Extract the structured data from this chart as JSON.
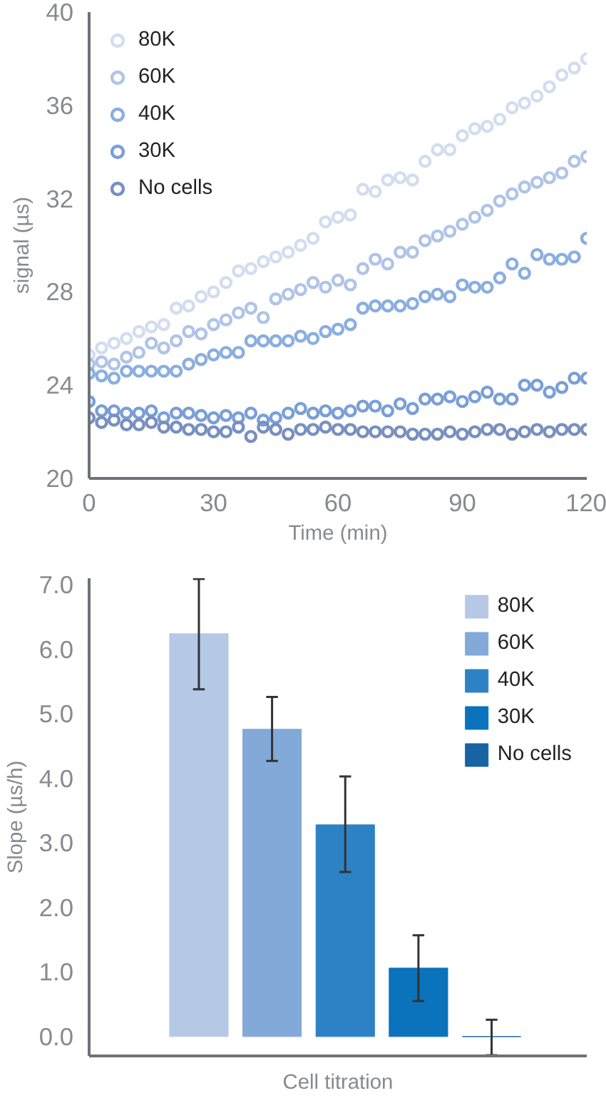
{
  "chart_data": [
    {
      "type": "scatter",
      "xlabel": "Time (min)",
      "ylabel": "signal (µs)",
      "xlim": [
        0,
        120
      ],
      "ylim": [
        20,
        40
      ],
      "xticks": [
        0,
        30,
        60,
        90,
        120
      ],
      "yticks": [
        20,
        24,
        28,
        32,
        36,
        40
      ],
      "marker": "circle",
      "legend": "top left",
      "grid": false,
      "x": [
        0,
        3,
        6,
        9,
        12,
        15,
        18,
        21,
        24,
        27,
        30,
        33,
        36,
        39,
        42,
        45,
        48,
        51,
        54,
        57,
        60,
        63,
        66,
        69,
        72,
        75,
        78,
        81,
        84,
        87,
        90,
        93,
        96,
        99,
        102,
        105,
        108,
        111,
        114,
        117,
        120
      ],
      "series": [
        {
          "name": "80K",
          "color": "#d3ddf0",
          "values": [
            25.3,
            25.6,
            25.8,
            26.0,
            26.3,
            26.5,
            26.6,
            27.3,
            27.4,
            27.8,
            28.0,
            28.4,
            28.9,
            29.0,
            29.3,
            29.5,
            29.7,
            30.0,
            30.3,
            31.0,
            31.2,
            31.3,
            32.4,
            32.3,
            32.8,
            32.9,
            32.8,
            33.6,
            34.1,
            34.1,
            34.7,
            35.0,
            35.1,
            35.4,
            35.9,
            36.1,
            36.4,
            36.8,
            37.3,
            37.6,
            38.0
          ]
        },
        {
          "name": "60K",
          "color": "#b0c4e8",
          "values": [
            24.9,
            25.0,
            24.9,
            25.2,
            25.4,
            25.8,
            25.6,
            25.9,
            26.3,
            26.2,
            26.6,
            26.8,
            27.1,
            27.3,
            26.9,
            27.7,
            27.9,
            28.1,
            28.4,
            28.2,
            28.5,
            28.3,
            29.0,
            29.4,
            29.2,
            29.7,
            29.7,
            30.2,
            30.4,
            30.6,
            30.9,
            31.2,
            31.5,
            31.9,
            32.2,
            32.5,
            32.7,
            32.9,
            33.1,
            33.6,
            33.8
          ]
        },
        {
          "name": "40K",
          "color": "#8aaee0",
          "values": [
            24.5,
            24.4,
            24.3,
            24.6,
            24.6,
            24.6,
            24.6,
            24.6,
            24.9,
            25.1,
            25.3,
            25.4,
            25.4,
            25.9,
            25.9,
            25.9,
            25.9,
            26.1,
            26.0,
            26.3,
            26.4,
            26.6,
            27.3,
            27.4,
            27.4,
            27.4,
            27.5,
            27.8,
            27.9,
            27.8,
            28.3,
            28.2,
            28.2,
            28.6,
            29.2,
            28.8,
            29.6,
            29.4,
            29.4,
            29.5,
            30.3
          ]
        },
        {
          "name": "30K",
          "color": "#7a9fd6",
          "values": [
            23.3,
            22.9,
            22.9,
            22.8,
            22.8,
            22.9,
            22.6,
            22.8,
            22.8,
            22.7,
            22.6,
            22.7,
            22.6,
            22.8,
            22.5,
            22.6,
            22.8,
            23.0,
            22.8,
            22.9,
            22.8,
            22.9,
            23.1,
            23.1,
            22.9,
            23.2,
            23.0,
            23.4,
            23.4,
            23.5,
            23.3,
            23.5,
            23.7,
            23.4,
            23.4,
            24.0,
            24.0,
            23.7,
            23.9,
            24.3,
            24.3
          ]
        },
        {
          "name": "No cells",
          "color": "#7890c0",
          "values": [
            22.6,
            22.4,
            22.5,
            22.3,
            22.3,
            22.4,
            22.2,
            22.2,
            22.1,
            22.1,
            22.0,
            22.0,
            22.2,
            21.8,
            22.2,
            22.1,
            21.9,
            22.1,
            22.1,
            22.2,
            22.1,
            22.1,
            22.0,
            22.0,
            22.0,
            22.0,
            21.9,
            21.9,
            21.9,
            22.0,
            21.9,
            22.0,
            22.1,
            22.1,
            21.9,
            22.0,
            22.1,
            22.0,
            22.1,
            22.1,
            22.1
          ]
        }
      ]
    },
    {
      "type": "bar",
      "xlabel": "Cell titration",
      "ylabel": "Slope (µs/h)",
      "categories": [
        null
      ],
      "ylim": [
        -0.3,
        7.1
      ],
      "yticks": [
        {
          "value": 0,
          "label": "0.0"
        },
        {
          "value": 1,
          "label": "1.0"
        },
        {
          "value": 2,
          "label": "2.0"
        },
        {
          "value": 3,
          "label": "3.0"
        },
        {
          "value": 4,
          "label": "4.0"
        },
        {
          "value": 5,
          "label": "5.0"
        },
        {
          "value": 6,
          "label": "6.0"
        },
        {
          "value": 7,
          "label": "7.0"
        }
      ],
      "legend": "top right",
      "grid": false,
      "series": [
        {
          "name": "80K",
          "color": "#b5c8e6",
          "values": [
            6.24
          ],
          "errors": [
            [
              5.38,
              7.09
            ]
          ]
        },
        {
          "name": "60K",
          "color": "#82a9d8",
          "values": [
            4.76
          ],
          "errors": [
            [
              4.27,
              5.26
            ]
          ]
        },
        {
          "name": "40K",
          "color": "#2d82c6",
          "values": [
            3.28
          ],
          "errors": [
            [
              2.55,
              4.03
            ]
          ]
        },
        {
          "name": "30K",
          "color": "#0b72bc",
          "values": [
            1.06
          ],
          "errors": [
            [
              0.55,
              1.57
            ]
          ]
        },
        {
          "name": "No cells",
          "color": "#1763a3",
          "values": [
            0
          ],
          "errors": [
            [
              -0.29,
              0.26
            ]
          ]
        }
      ]
    }
  ]
}
